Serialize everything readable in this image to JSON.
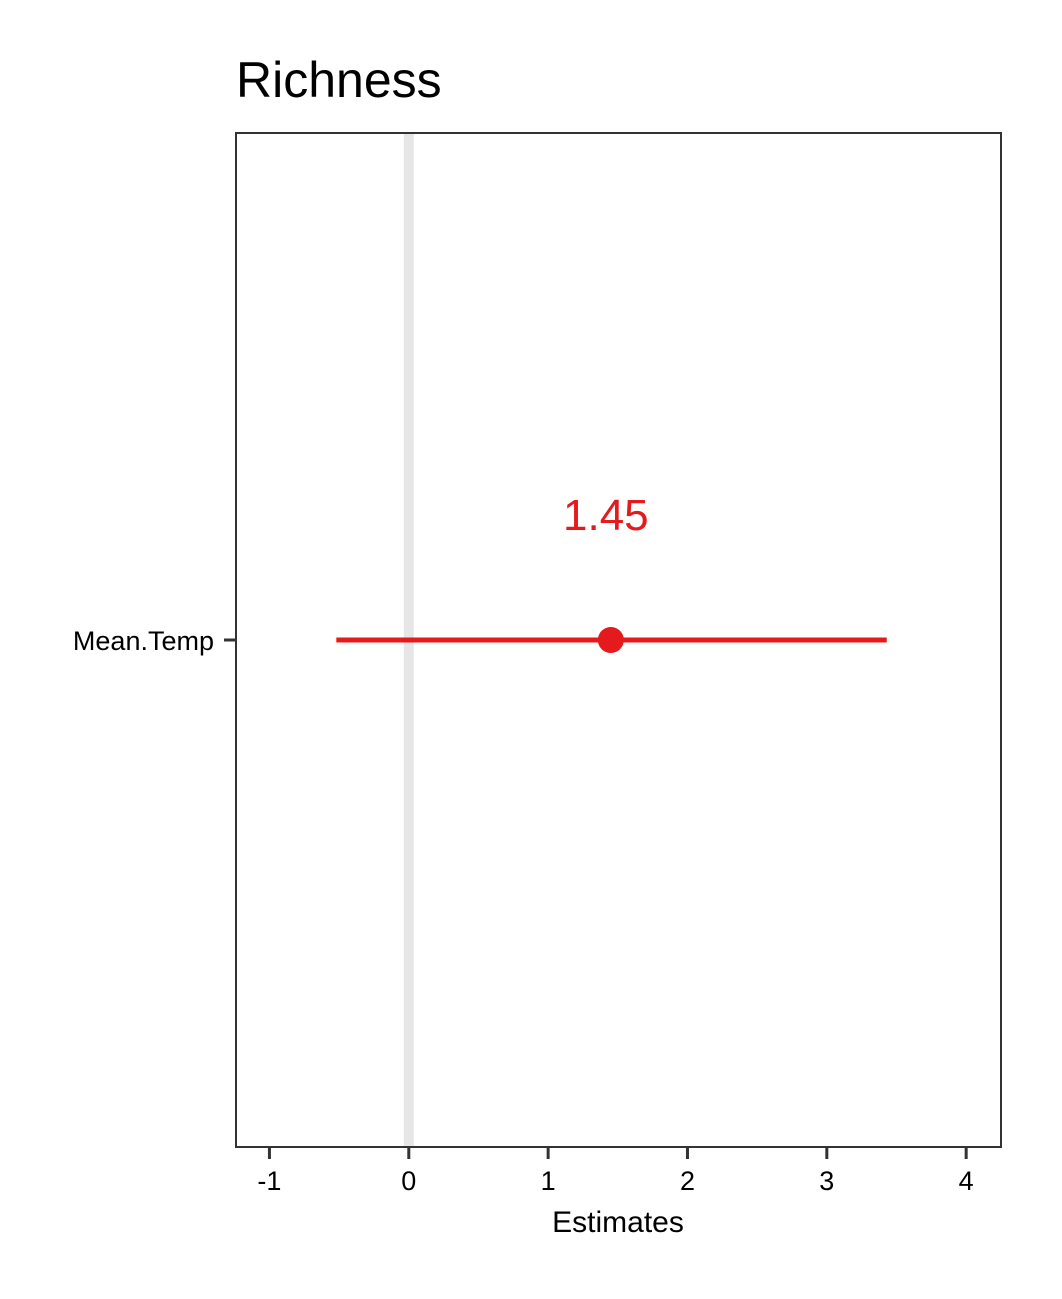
{
  "chart_data": {
    "type": "scatter",
    "title": "Richness",
    "xlabel": "Estimates",
    "ylabel": "",
    "xlim": [
      -1.24,
      4.25
    ],
    "xticks": [
      "-1",
      "0",
      "1",
      "2",
      "3",
      "4"
    ],
    "xtick_values": [
      -1,
      0,
      1,
      2,
      3,
      4
    ],
    "reference_line": 0,
    "grid": false,
    "terms": [
      {
        "label": "Mean.Temp",
        "estimate": 1.45,
        "estimate_label": "1.45",
        "ci_low": -0.52,
        "ci_high": 3.43,
        "color": "#e41a1c"
      }
    ]
  },
  "colors": {
    "estimate": "#e41a1c",
    "reference_line": "#e6e6e6",
    "axis": "#333333"
  }
}
